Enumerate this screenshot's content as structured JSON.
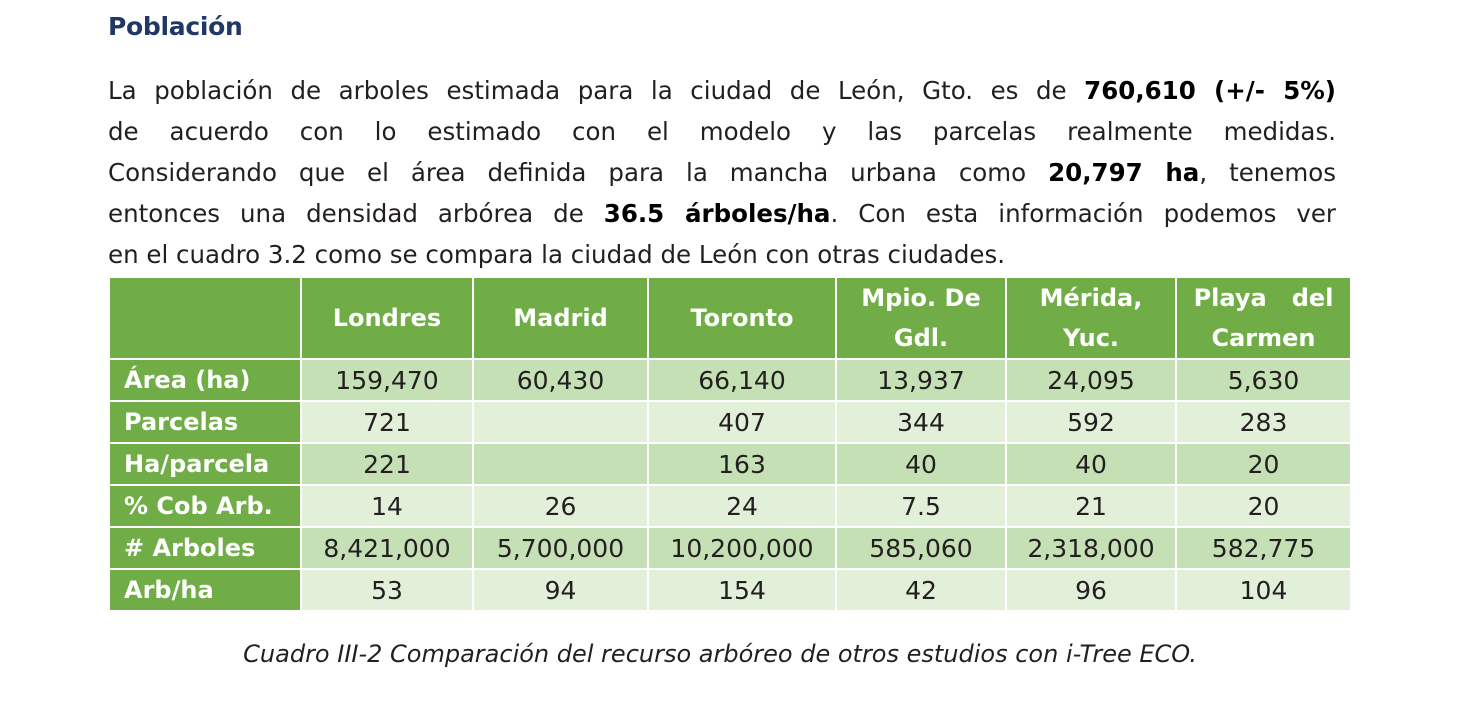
{
  "heading": "Población",
  "paragraph": {
    "l1_a": "La población de arboles estimada para la ciudad de León, Gto. es de ",
    "l1_b": "760,610 (+/- 5%)",
    "l2": "de acuerdo con lo estimado con el modelo y las parcelas realmente medidas.",
    "l3_a": "Considerando que el área definida para la mancha urbana como ",
    "l3_b": "20,797 ha",
    "l3_c": ", tenemos",
    "l4_a": "entonces una densidad arbórea de ",
    "l4_b": "36.5 árboles/ha",
    "l4_c": ".  Con esta información podemos ver",
    "l5": "en el cuadro 3.2 como se compara la ciudad de León con otras ciudades."
  },
  "table": {
    "columns": [
      {
        "l1": "Londres",
        "l2": ""
      },
      {
        "l1": "Madrid",
        "l2": ""
      },
      {
        "l1": "Toronto",
        "l2": ""
      },
      {
        "l1": "Mpio. De",
        "l2": "Gdl."
      },
      {
        "l1": "Mérida,",
        "l2": "Yuc."
      },
      {
        "l1": "Playa   del",
        "l2": "Carmen"
      }
    ],
    "rows": [
      {
        "label": "Área (ha)",
        "cells": [
          "159,470",
          "60,430",
          "66,140",
          "13,937",
          "24,095",
          "5,630"
        ]
      },
      {
        "label": "Parcelas",
        "cells": [
          "721",
          "",
          "407",
          "344",
          "592",
          "283"
        ]
      },
      {
        "label": "Ha/parcela",
        "cells": [
          "221",
          "",
          "163",
          "40",
          "40",
          "20"
        ]
      },
      {
        "label": "% Cob Arb.",
        "cells": [
          "14",
          "26",
          "24",
          "7.5",
          "21",
          "20"
        ]
      },
      {
        "label": "# Arboles",
        "cells": [
          "8,421,000",
          "5,700,000",
          "10,200,000",
          "585,060",
          "2,318,000",
          "582,775"
        ]
      },
      {
        "label": "Arb/ha",
        "cells": [
          "53",
          "94",
          "154",
          "42",
          "96",
          "104"
        ]
      }
    ]
  },
  "caption": "Cuadro III-2 Comparación del recurso arbóreo de otros estudios con i-Tree ECO.",
  "colors": {
    "heading": "#1f3864",
    "header_green": "#70ad47",
    "row_dark": "#c5e0b4",
    "row_light": "#e2efd9"
  }
}
